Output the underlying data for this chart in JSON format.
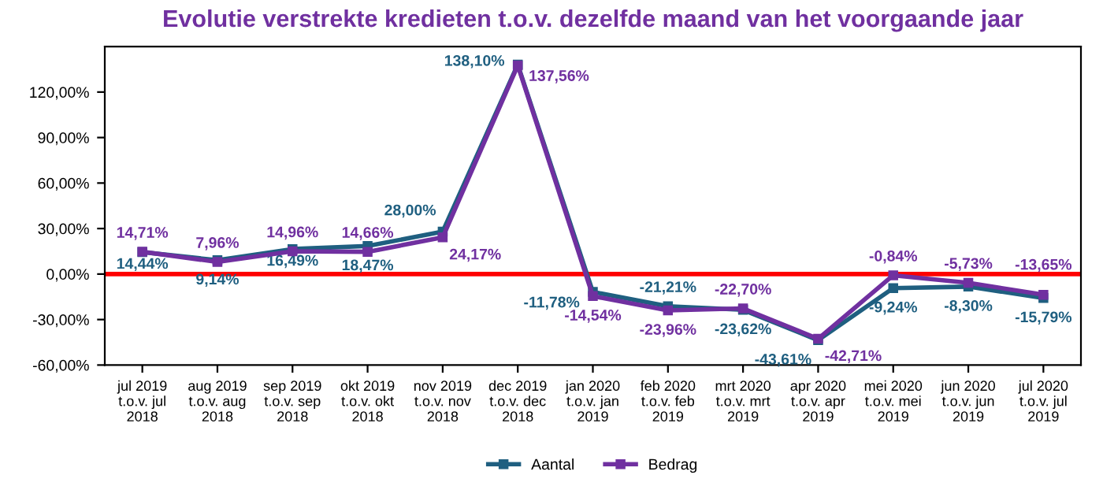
{
  "chart_data": {
    "type": "line",
    "title": "Evolutie verstrekte kredieten t.o.v. dezelfde maand van het voorgaande jaar",
    "categories": [
      "jul 2019\nt.o.v. jul\n2018",
      "aug 2019\nt.o.v. aug\n2018",
      "sep 2019\nt.o.v. sep\n2018",
      "okt 2019\nt.o.v. okt\n2018",
      "nov 2019\nt.o.v. nov\n2018",
      "dec 2019\nt.o.v. dec\n2018",
      "jan 2020\nt.o.v. jan\n2019",
      "feb 2020\nt.o.v. feb\n2019",
      "mrt 2020\nt.o.v. mrt\n2019",
      "apr 2020\nt.o.v. apr\n2019",
      "mei 2020\nt.o.v. mei\n2019",
      "jun 2020\nt.o.v. jun\n2019",
      "jul 2020\nt.o.v. jul\n2019"
    ],
    "series": [
      {
        "name": "Aantal",
        "color": "#1f5f80",
        "values": [
          14.44,
          9.14,
          16.49,
          18.47,
          28.0,
          138.1,
          -11.78,
          -21.21,
          -23.62,
          -43.61,
          -9.24,
          -8.3,
          -15.79
        ],
        "value_labels": [
          "14,44%",
          "9,14%",
          "16,49%",
          "18,47%",
          "28,00%",
          "138,10%",
          "-11,78%",
          "-21,21%",
          "-23,62%",
          "-43,61%",
          "-9,24%",
          "-8,30%",
          "-15,79%"
        ]
      },
      {
        "name": "Bedrag",
        "color": "#7030a0",
        "values": [
          14.71,
          7.96,
          14.96,
          14.66,
          24.17,
          137.56,
          -14.54,
          -23.96,
          -22.7,
          -42.71,
          -0.84,
          -5.73,
          -13.65
        ],
        "value_labels": [
          "14,71%",
          "7,96%",
          "14,96%",
          "14,66%",
          "24,17%",
          "137,56%",
          "-14,54%",
          "-23,96%",
          "-22,70%",
          "-42,71%",
          "-0,84%",
          "-5,73%",
          "-13,65%"
        ]
      }
    ],
    "ylim": [
      -60,
      150
    ],
    "yticks": [
      {
        "value": -60,
        "label": "-60,00%"
      },
      {
        "value": -30,
        "label": "-30,00%"
      },
      {
        "value": 0,
        "label": "0,00%"
      },
      {
        "value": 30,
        "label": "30,00%"
      },
      {
        "value": 60,
        "label": "60,00%"
      },
      {
        "value": 90,
        "label": "90,00%"
      },
      {
        "value": 120,
        "label": "120,00%"
      }
    ],
    "ref_lines": [
      {
        "axis": "y",
        "value": 0,
        "color": "#ff0000"
      }
    ],
    "marker": "square",
    "line_style": "solid",
    "grid": false,
    "legend": "bottom"
  }
}
